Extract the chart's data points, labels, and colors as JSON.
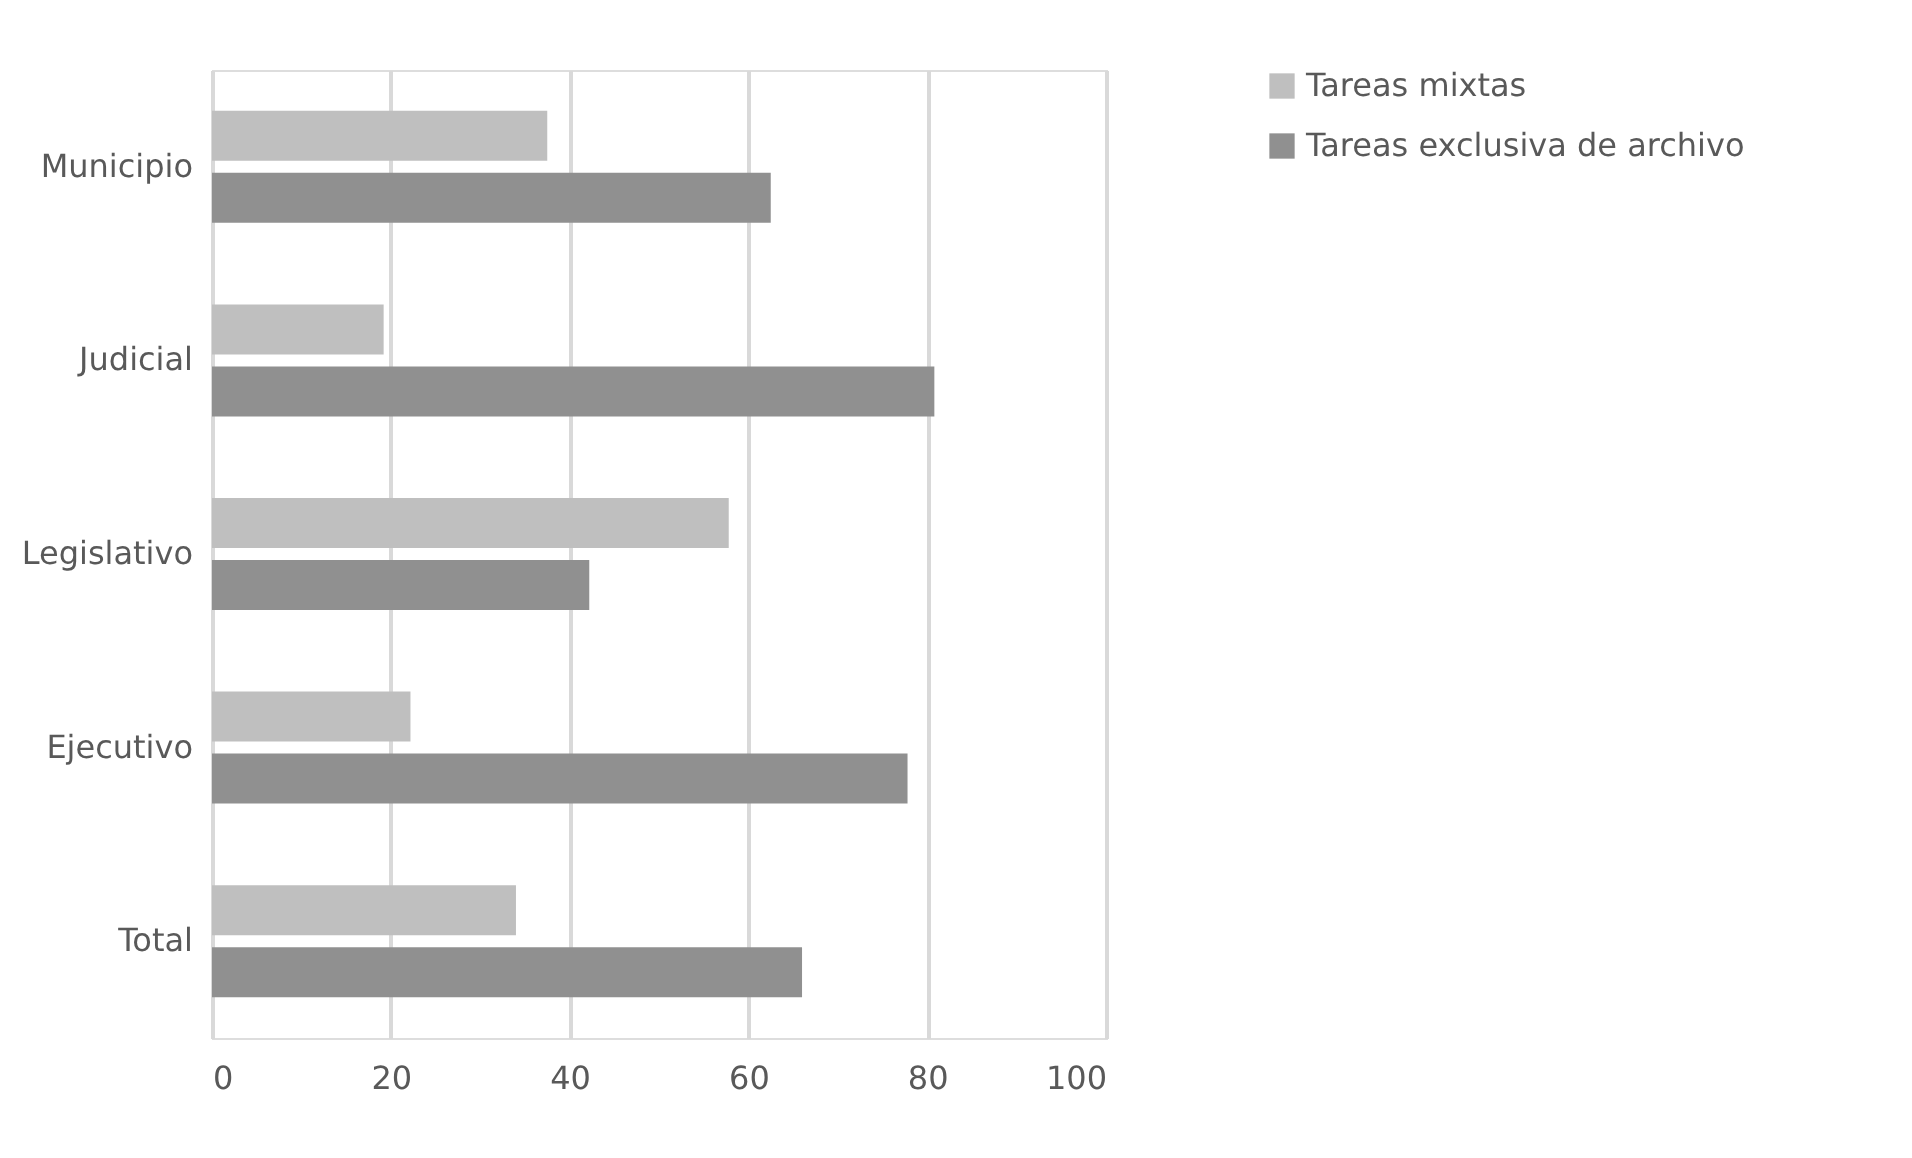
{
  "chart_data": {
    "type": "bar",
    "orientation": "horizontal",
    "categories": [
      "Municipio",
      "Judicial",
      "Legislativo",
      "Ejecutivo",
      "Total"
    ],
    "series": [
      {
        "name": "Tareas mixtas",
        "color": "#bfbfbf",
        "values": [
          37.5,
          19.2,
          57.8,
          22.2,
          34.0
        ]
      },
      {
        "name": "Tareas exclusiva de archivo",
        "color": "#909090",
        "values": [
          62.5,
          80.8,
          42.2,
          77.8,
          66.0
        ]
      }
    ],
    "xlim": [
      0,
      100
    ],
    "xticks": [
      0,
      20,
      40,
      60,
      80,
      100
    ],
    "grid": "x",
    "legend": "right"
  }
}
